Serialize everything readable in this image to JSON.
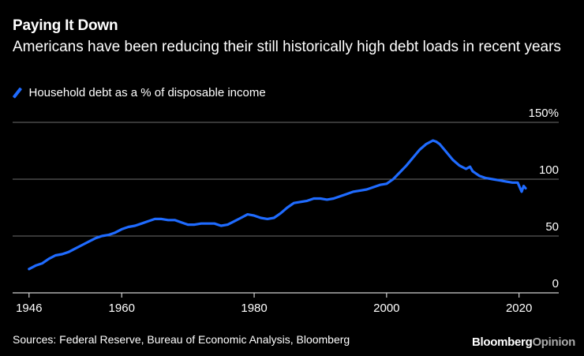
{
  "chart_data": {
    "type": "line",
    "title": "Paying It Down",
    "subtitle": "Americans have been reducing their still historically high debt loads in recent years",
    "legend": "Household debt as a % of disposable income",
    "color": "#1f6bff",
    "xlabel": "",
    "ylabel": "",
    "xlim": [
      1944,
      2026
    ],
    "ylim": [
      0,
      150
    ],
    "x_ticks": [
      1946,
      1960,
      1980,
      2000,
      2020
    ],
    "x_tick_labels": [
      "1946",
      "1960",
      "1980",
      "2000",
      "2020"
    ],
    "y_ticks": [
      0,
      50,
      100,
      150
    ],
    "y_tick_labels": [
      "0",
      "50",
      "100",
      "150%"
    ],
    "grid": "horizontal",
    "series": [
      {
        "name": "Household debt as a % of disposable income",
        "x": [
          1946,
          1947,
          1948,
          1949,
          1950,
          1951,
          1952,
          1953,
          1954,
          1955,
          1956,
          1957,
          1958,
          1959,
          1960,
          1961,
          1962,
          1963,
          1964,
          1965,
          1966,
          1967,
          1968,
          1969,
          1970,
          1971,
          1972,
          1973,
          1974,
          1975,
          1976,
          1977,
          1978,
          1979,
          1980,
          1981,
          1982,
          1983,
          1984,
          1985,
          1986,
          1987,
          1988,
          1989,
          1990,
          1991,
          1992,
          1993,
          1994,
          1995,
          1996,
          1997,
          1998,
          1999,
          2000,
          2001,
          2002,
          2003,
          2004,
          2005,
          2006,
          2007,
          2007.5,
          2008,
          2009,
          2010,
          2011,
          2012,
          2012.6,
          2013,
          2014,
          2015,
          2016,
          2017,
          2018,
          2019,
          2019.8,
          2020.1,
          2020.4,
          2020.7,
          2021
        ],
        "values": [
          21,
          24,
          26,
          30,
          33,
          34,
          36,
          39,
          42,
          45,
          48,
          50,
          51,
          53,
          56,
          58,
          59,
          61,
          63,
          65,
          65,
          64,
          64,
          62,
          60,
          60,
          61,
          61,
          61,
          59,
          60,
          63,
          66,
          69,
          68,
          66,
          65,
          66,
          70,
          75,
          79,
          80,
          81,
          83,
          83,
          82,
          83,
          85,
          87,
          89,
          90,
          91,
          93,
          95,
          96,
          100,
          106,
          112,
          119,
          126,
          131,
          134,
          133,
          131,
          124,
          117,
          112,
          109,
          111,
          107,
          103,
          101,
          100,
          99,
          98,
          97,
          97,
          93,
          89,
          94,
          92
        ]
      }
    ]
  },
  "footer": {
    "source": "Sources: Federal Reserve, Bureau of Economic Analysis, Bloomberg",
    "brand_part1": "Bloomberg",
    "brand_part2": "Opinion"
  }
}
